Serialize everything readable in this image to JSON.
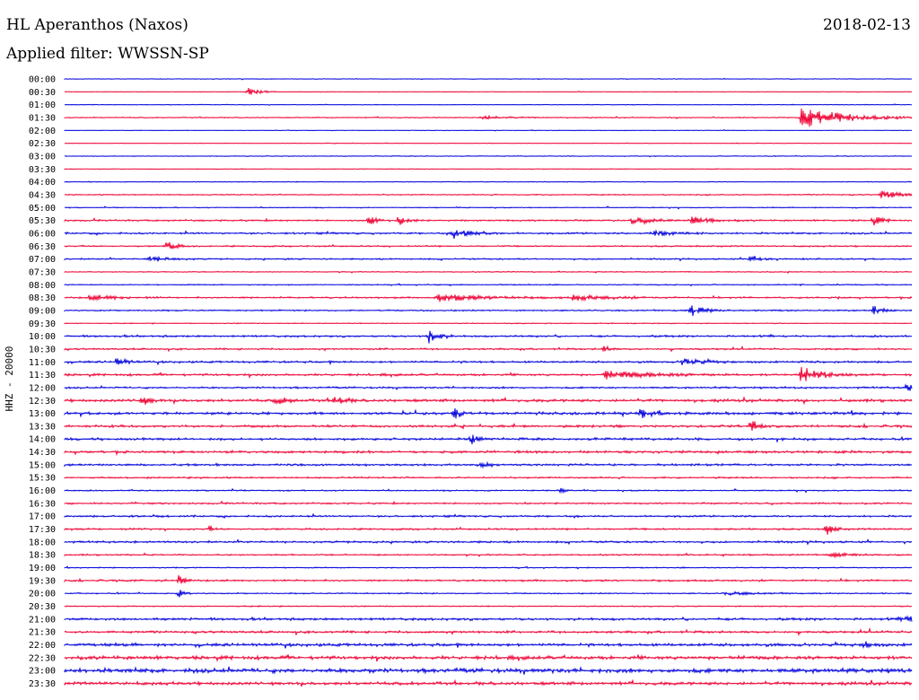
{
  "header": {
    "station": "HL Aperanthos (Naxos)",
    "date": "2018-02-13",
    "filter": "Applied filter: WWSSN-SP"
  },
  "chart_data": {
    "type": "line",
    "title": "HL Aperanthos (Naxos)",
    "subtitle": "Applied filter: WWSSN-SP",
    "ylabel": "HHZ - 20000",
    "colors": {
      "even": "#0000dd",
      "odd": "#ee0033"
    },
    "rows": [
      "00:00",
      "00:30",
      "01:00",
      "01:30",
      "02:00",
      "02:30",
      "03:00",
      "03:30",
      "04:00",
      "04:30",
      "05:00",
      "05:30",
      "06:00",
      "06:30",
      "07:00",
      "07:30",
      "08:00",
      "08:30",
      "09:00",
      "09:30",
      "10:00",
      "10:30",
      "11:00",
      "11:30",
      "12:00",
      "12:30",
      "13:00",
      "13:30",
      "14:00",
      "14:30",
      "15:00",
      "15:30",
      "16:00",
      "16:30",
      "17:00",
      "17:30",
      "18:00",
      "18:30",
      "19:00",
      "19:30",
      "20:00",
      "20:30",
      "21:00",
      "21:30",
      "22:00",
      "22:30",
      "23:00",
      "23:30"
    ],
    "noise": [
      0.3,
      0.3,
      0.4,
      0.5,
      0.3,
      0.3,
      0.4,
      0.4,
      0.4,
      0.6,
      0.5,
      0.9,
      1.0,
      0.8,
      0.8,
      0.5,
      0.6,
      0.9,
      0.8,
      0.5,
      1.1,
      0.9,
      1.1,
      1.2,
      1.0,
      1.5,
      1.5,
      1.3,
      1.3,
      1.4,
      1.1,
      0.9,
      0.7,
      0.9,
      1.0,
      1.0,
      1.1,
      0.8,
      0.6,
      1.0,
      0.7,
      0.6,
      1.4,
      1.2,
      1.6,
      1.9,
      2.3,
      1.7
    ],
    "events": [
      {
        "row": 1,
        "t": 0.216,
        "amp": 5,
        "dur": 0.012
      },
      {
        "row": 3,
        "t": 0.87,
        "amp": 12,
        "dur": 0.05
      },
      {
        "row": 3,
        "t": 0.49,
        "amp": 2,
        "dur": 0.03
      },
      {
        "row": 9,
        "t": 0.965,
        "amp": 5,
        "dur": 0.02
      },
      {
        "row": 11,
        "t": 0.36,
        "amp": 6,
        "dur": 0.008
      },
      {
        "row": 11,
        "t": 0.395,
        "amp": 5,
        "dur": 0.01
      },
      {
        "row": 11,
        "t": 0.67,
        "amp": 4,
        "dur": 0.02
      },
      {
        "row": 11,
        "t": 0.74,
        "amp": 4,
        "dur": 0.02
      },
      {
        "row": 11,
        "t": 0.955,
        "amp": 5,
        "dur": 0.01
      },
      {
        "row": 12,
        "t": 0.46,
        "amp": 6,
        "dur": 0.02
      },
      {
        "row": 12,
        "t": 0.695,
        "amp": 4,
        "dur": 0.02
      },
      {
        "row": 13,
        "t": 0.12,
        "amp": 6,
        "dur": 0.01
      },
      {
        "row": 14,
        "t": 0.1,
        "amp": 3,
        "dur": 0.02
      },
      {
        "row": 14,
        "t": 0.81,
        "amp": 4,
        "dur": 0.012
      },
      {
        "row": 17,
        "t": 0.03,
        "amp": 3,
        "dur": 0.03
      },
      {
        "row": 17,
        "t": 0.44,
        "amp": 4,
        "dur": 0.05
      },
      {
        "row": 17,
        "t": 0.6,
        "amp": 3,
        "dur": 0.04
      },
      {
        "row": 18,
        "t": 0.74,
        "amp": 6,
        "dur": 0.015
      },
      {
        "row": 18,
        "t": 0.955,
        "amp": 5,
        "dur": 0.01
      },
      {
        "row": 20,
        "t": 0.43,
        "amp": 8,
        "dur": 0.01
      },
      {
        "row": 21,
        "t": 0.638,
        "amp": 5,
        "dur": 0.005
      },
      {
        "row": 22,
        "t": 0.062,
        "amp": 5,
        "dur": 0.01
      },
      {
        "row": 22,
        "t": 0.73,
        "amp": 4,
        "dur": 0.02
      },
      {
        "row": 23,
        "t": 0.87,
        "amp": 9,
        "dur": 0.02
      },
      {
        "row": 23,
        "t": 0.64,
        "amp": 9,
        "dur": 0.005
      },
      {
        "row": 23,
        "t": 0.655,
        "amp": 3,
        "dur": 0.05
      },
      {
        "row": 24,
        "t": 0.995,
        "amp": 6,
        "dur": 0.005
      },
      {
        "row": 25,
        "t": 0.09,
        "amp": 5,
        "dur": 0.01
      },
      {
        "row": 25,
        "t": 0.25,
        "amp": 5,
        "dur": 0.01
      },
      {
        "row": 25,
        "t": 0.32,
        "amp": 5,
        "dur": 0.01
      },
      {
        "row": 26,
        "t": 0.46,
        "amp": 8,
        "dur": 0.005
      },
      {
        "row": 26,
        "t": 0.68,
        "amp": 6,
        "dur": 0.01
      },
      {
        "row": 27,
        "t": 0.81,
        "amp": 7,
        "dur": 0.008
      },
      {
        "row": 28,
        "t": 0.48,
        "amp": 5,
        "dur": 0.01
      },
      {
        "row": 30,
        "t": 0.49,
        "amp": 4,
        "dur": 0.01
      },
      {
        "row": 32,
        "t": 0.585,
        "amp": 3,
        "dur": 0.005
      },
      {
        "row": 35,
        "t": 0.9,
        "amp": 6,
        "dur": 0.008
      },
      {
        "row": 35,
        "t": 0.172,
        "amp": 3,
        "dur": 0.005
      },
      {
        "row": 37,
        "t": 0.9,
        "amp": 3,
        "dur": 0.02
      },
      {
        "row": 39,
        "t": 0.135,
        "amp": 9,
        "dur": 0.005
      },
      {
        "row": 40,
        "t": 0.135,
        "amp": 5,
        "dur": 0.005
      },
      {
        "row": 40,
        "t": 0.78,
        "amp": 2,
        "dur": 0.03
      },
      {
        "row": 42,
        "t": 0.99,
        "amp": 4,
        "dur": 0.015
      },
      {
        "row": 44,
        "t": 0.945,
        "amp": 4,
        "dur": 0.005
      }
    ]
  }
}
